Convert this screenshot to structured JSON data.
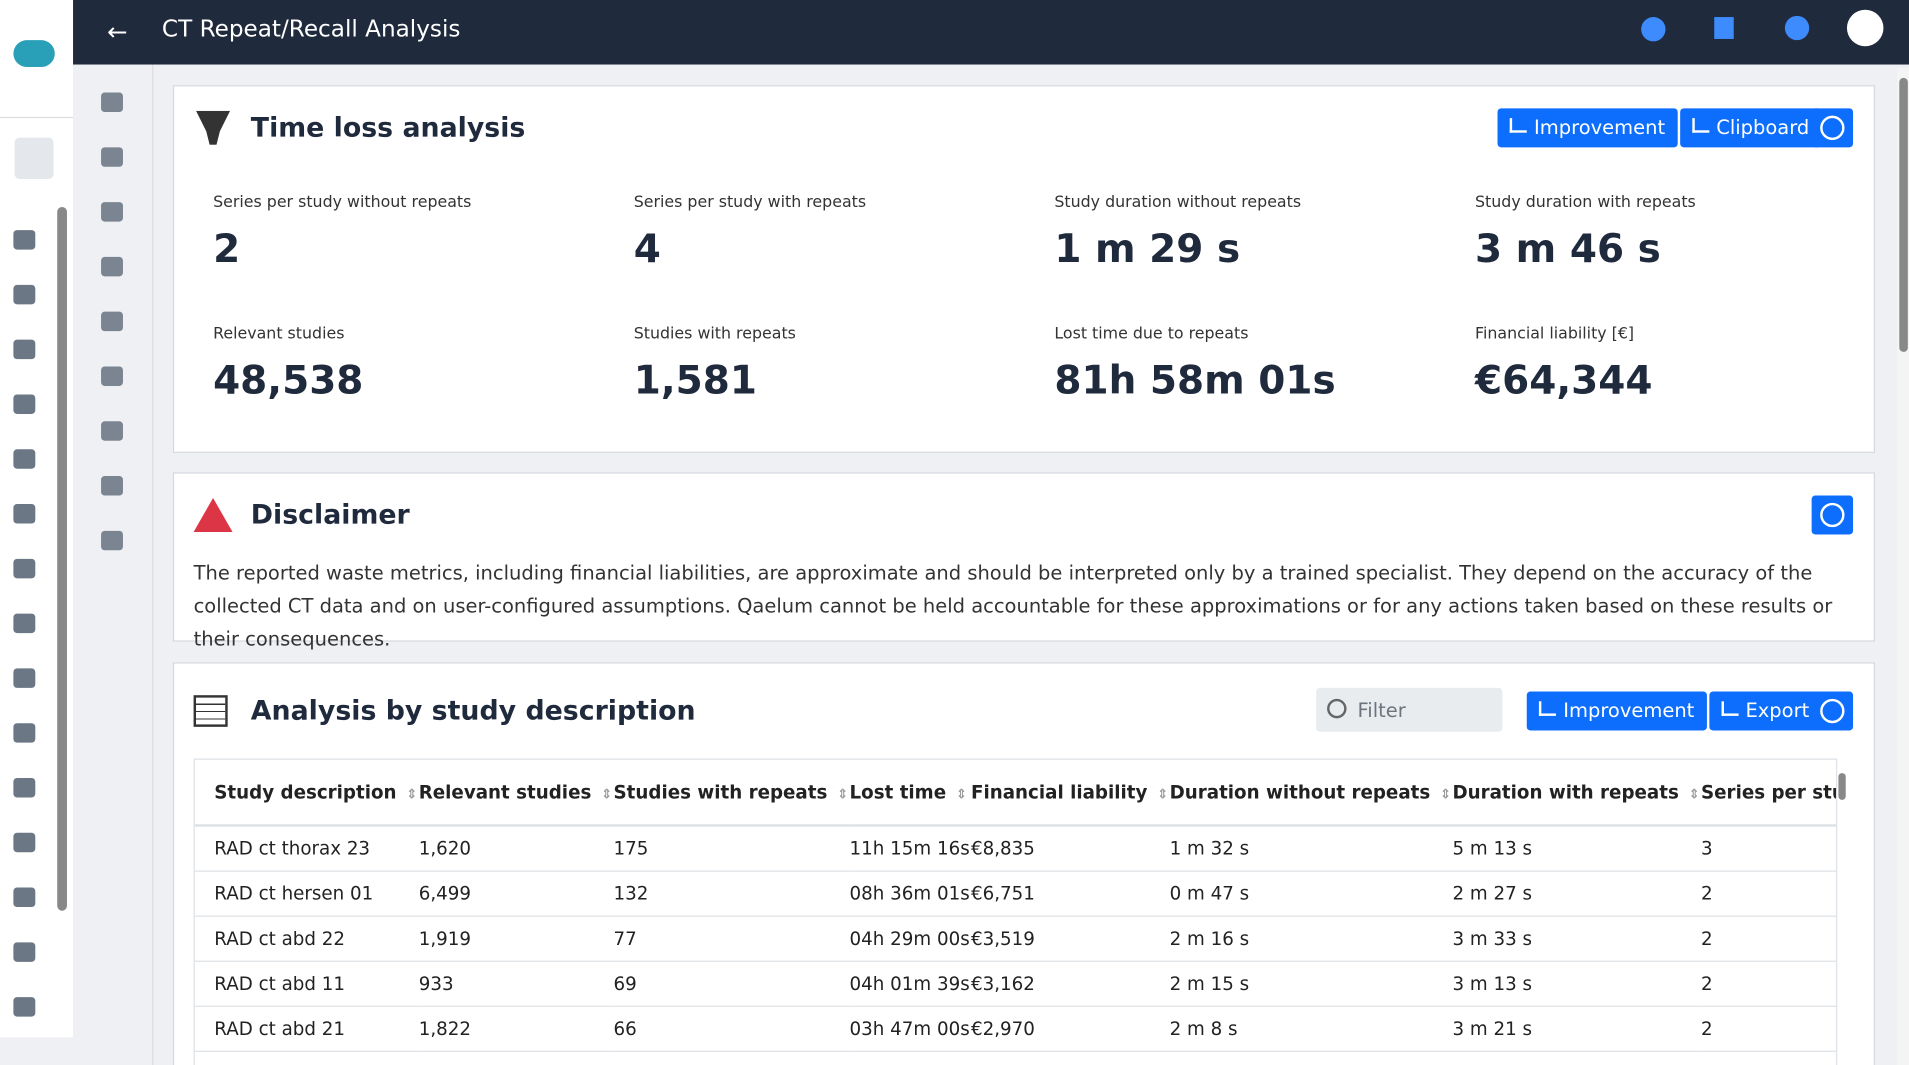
{
  "header": {
    "title": "CT Repeat/Recall Analysis"
  },
  "time_loss": {
    "title": "Time loss analysis",
    "buttons": [
      "Improvement",
      "Clipboard"
    ],
    "stats": [
      {
        "label": "Series per study without repeats",
        "value": "2"
      },
      {
        "label": "Series per study with repeats",
        "value": "4"
      },
      {
        "label": "Study duration without repeats",
        "value": "1 m 29 s"
      },
      {
        "label": "Study duration with repeats",
        "value": "3 m 46 s"
      },
      {
        "label": "Relevant studies",
        "value": "48,538"
      },
      {
        "label": "Studies with repeats",
        "value": "1,581"
      },
      {
        "label": "Lost time due to repeats",
        "value": "81h 58m 01s"
      },
      {
        "label": "Financial liability [€]",
        "value": "€64,344"
      }
    ]
  },
  "disclaimer": {
    "title": "Disclaimer",
    "text": "The reported waste metrics, including financial liabilities, are approximate and should be interpreted only by a trained specialist. They depend on the accuracy of the collected CT data and on user-configured assumptions. Qaelum cannot be held accountable for these approximations or for any actions taken based on these results or their consequences."
  },
  "analysis": {
    "title": "Analysis by study description",
    "filter_placeholder": "Filter",
    "buttons": [
      "Improvement",
      "Export"
    ],
    "table": {
      "columns": [
        "Study description",
        "Relevant studies",
        "Studies with repeats",
        "Lost time",
        "Financial liability",
        "Duration without repeats",
        "Duration with repeats",
        "Series per study with"
      ],
      "rows": [
        [
          "RAD ct thorax 23",
          "1,620",
          "175",
          "11h 15m 16s",
          "€8,835",
          "1 m 32 s",
          "5 m 13 s",
          "3"
        ],
        [
          "RAD ct hersen 01",
          "6,499",
          "132",
          "08h 36m 01s",
          "€6,751",
          "0 m 47 s",
          "2 m 27 s",
          "2"
        ],
        [
          "RAD ct abd 22",
          "1,919",
          "77",
          "04h 29m 00s",
          "€3,519",
          "2 m 16 s",
          "3 m 33 s",
          "2"
        ],
        [
          "RAD ct abd 11",
          "933",
          "69",
          "04h 01m 39s",
          "€3,162",
          "2 m 15 s",
          "3 m 13 s",
          "2"
        ],
        [
          "RAD ct abd 21",
          "1,822",
          "66",
          "03h 47m 00s",
          "€2,970",
          "2 m 8 s",
          "3 m 21 s",
          "2"
        ]
      ]
    }
  }
}
